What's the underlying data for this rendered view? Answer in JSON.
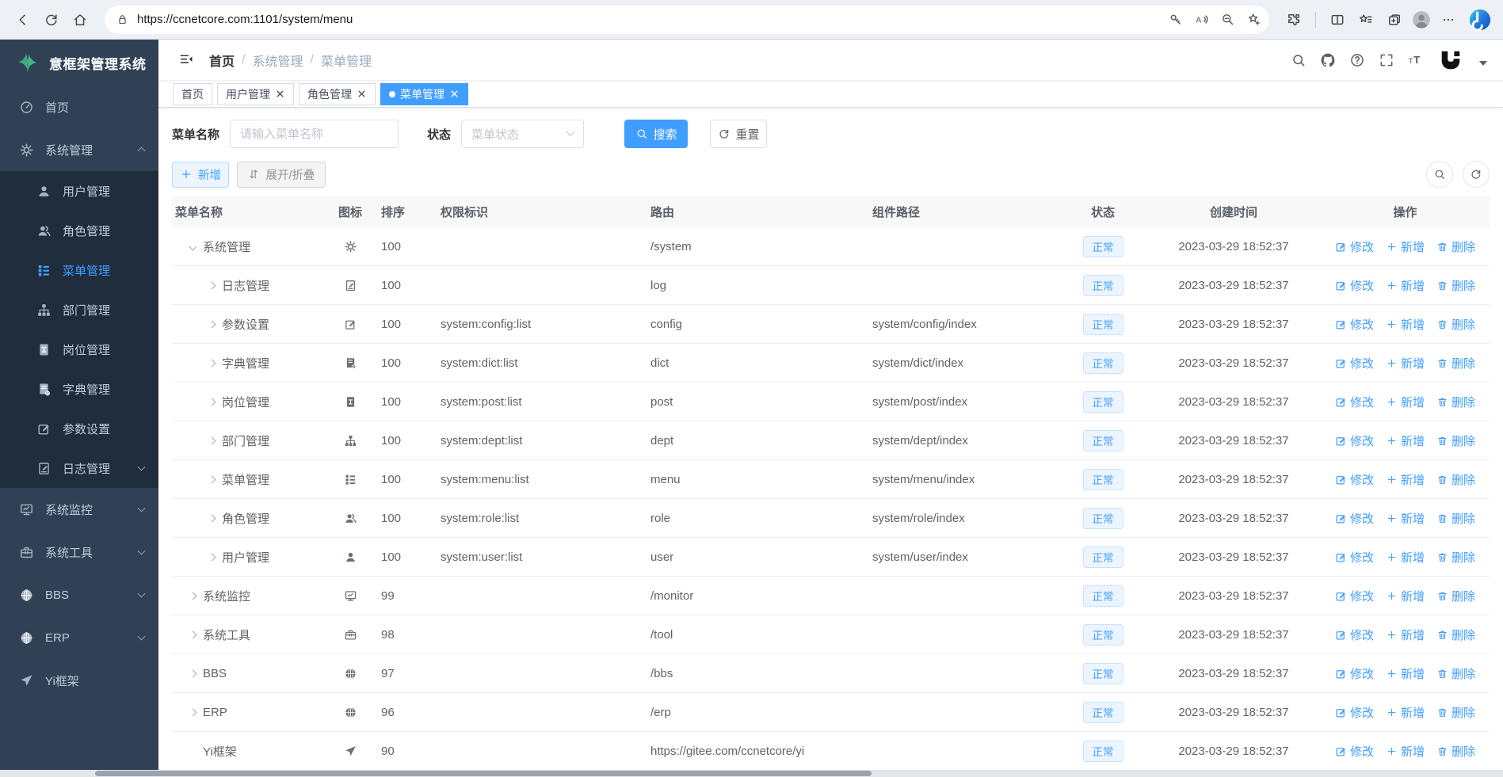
{
  "browser": {
    "url": "https://ccnetcore.com:1101/system/menu"
  },
  "sidebar": {
    "title": "意框架管理系统",
    "items": [
      {
        "label": "首页",
        "icon": "dashboard",
        "type": "top",
        "chevron": "",
        "active": false
      },
      {
        "label": "系统管理",
        "icon": "gear",
        "type": "top",
        "chevron": "up",
        "active": false
      },
      {
        "label": "用户管理",
        "icon": "user",
        "type": "sub",
        "chevron": "",
        "active": false
      },
      {
        "label": "角色管理",
        "icon": "users",
        "type": "sub",
        "chevron": "",
        "active": false
      },
      {
        "label": "菜单管理",
        "icon": "menutree",
        "type": "sub",
        "chevron": "",
        "active": true
      },
      {
        "label": "部门管理",
        "icon": "org",
        "type": "sub",
        "chevron": "",
        "active": false
      },
      {
        "label": "岗位管理",
        "icon": "badge",
        "type": "sub",
        "chevron": "",
        "active": false
      },
      {
        "label": "字典管理",
        "icon": "book",
        "type": "sub",
        "chevron": "",
        "active": false
      },
      {
        "label": "参数设置",
        "icon": "editsquare",
        "type": "sub",
        "chevron": "",
        "active": false
      },
      {
        "label": "日志管理",
        "icon": "logedit",
        "type": "sub",
        "chevron": "down",
        "active": false
      },
      {
        "label": "系统监控",
        "icon": "monitor",
        "type": "top",
        "chevron": "down",
        "active": false
      },
      {
        "label": "系统工具",
        "icon": "toolbox",
        "type": "top",
        "chevron": "down",
        "active": false
      },
      {
        "label": "BBS",
        "icon": "globe",
        "type": "top",
        "chevron": "down",
        "active": false
      },
      {
        "label": "ERP",
        "icon": "globe",
        "type": "top",
        "chevron": "down",
        "active": false
      },
      {
        "label": "Yi框架",
        "icon": "plane",
        "type": "top",
        "chevron": "",
        "active": false
      }
    ]
  },
  "navbar": {
    "separator": "/",
    "breadcrumb": [
      {
        "label": "首页",
        "muted": false
      },
      {
        "label": "系统管理",
        "muted": true
      },
      {
        "label": "菜单管理",
        "muted": true
      }
    ]
  },
  "tabs": [
    {
      "label": "首页",
      "active": false,
      "closable": false
    },
    {
      "label": "用户管理",
      "active": false,
      "closable": true
    },
    {
      "label": "角色管理",
      "active": false,
      "closable": true
    },
    {
      "label": "菜单管理",
      "active": true,
      "closable": true
    }
  ],
  "filters": {
    "name_label": "菜单名称",
    "name_placeholder": "请输入菜单名称",
    "status_label": "状态",
    "status_placeholder": "菜单状态",
    "search_label": "搜索",
    "reset_label": "重置"
  },
  "toolbar": {
    "add_label": "新增",
    "expand_label": "展开/折叠"
  },
  "table": {
    "columns": [
      "菜单名称",
      "图标",
      "排序",
      "权限标识",
      "路由",
      "组件路径",
      "状态",
      "创建时间",
      "操作"
    ],
    "actions": {
      "edit": "修改",
      "add": "新增",
      "delete": "删除"
    },
    "rows": [
      {
        "name": "系统管理",
        "level": 0,
        "arrow": "down",
        "icon": "gear",
        "sort": "100",
        "perm": "",
        "route": "/system",
        "component": "",
        "status": "正常",
        "created": "2023-03-29 18:52:37"
      },
      {
        "name": "日志管理",
        "level": 1,
        "arrow": "right",
        "icon": "logedit",
        "sort": "100",
        "perm": "",
        "route": "log",
        "component": "",
        "status": "正常",
        "created": "2023-03-29 18:52:37"
      },
      {
        "name": "参数设置",
        "level": 1,
        "arrow": "right",
        "icon": "editsquare",
        "sort": "100",
        "perm": "system:config:list",
        "route": "config",
        "component": "system/config/index",
        "status": "正常",
        "created": "2023-03-29 18:52:37"
      },
      {
        "name": "字典管理",
        "level": 1,
        "arrow": "right",
        "icon": "book",
        "sort": "100",
        "perm": "system:dict:list",
        "route": "dict",
        "component": "system/dict/index",
        "status": "正常",
        "created": "2023-03-29 18:52:37"
      },
      {
        "name": "岗位管理",
        "level": 1,
        "arrow": "right",
        "icon": "badge",
        "sort": "100",
        "perm": "system:post:list",
        "route": "post",
        "component": "system/post/index",
        "status": "正常",
        "created": "2023-03-29 18:52:37"
      },
      {
        "name": "部门管理",
        "level": 1,
        "arrow": "right",
        "icon": "org",
        "sort": "100",
        "perm": "system:dept:list",
        "route": "dept",
        "component": "system/dept/index",
        "status": "正常",
        "created": "2023-03-29 18:52:37"
      },
      {
        "name": "菜单管理",
        "level": 1,
        "arrow": "right",
        "icon": "menutree",
        "sort": "100",
        "perm": "system:menu:list",
        "route": "menu",
        "component": "system/menu/index",
        "status": "正常",
        "created": "2023-03-29 18:52:37"
      },
      {
        "name": "角色管理",
        "level": 1,
        "arrow": "right",
        "icon": "users",
        "sort": "100",
        "perm": "system:role:list",
        "route": "role",
        "component": "system/role/index",
        "status": "正常",
        "created": "2023-03-29 18:52:37"
      },
      {
        "name": "用户管理",
        "level": 1,
        "arrow": "right",
        "icon": "user",
        "sort": "100",
        "perm": "system:user:list",
        "route": "user",
        "component": "system/user/index",
        "status": "正常",
        "created": "2023-03-29 18:52:37"
      },
      {
        "name": "系统监控",
        "level": 0,
        "arrow": "right",
        "icon": "monitor",
        "sort": "99",
        "perm": "",
        "route": "/monitor",
        "component": "",
        "status": "正常",
        "created": "2023-03-29 18:52:37"
      },
      {
        "name": "系统工具",
        "level": 0,
        "arrow": "right",
        "icon": "toolbox",
        "sort": "98",
        "perm": "",
        "route": "/tool",
        "component": "",
        "status": "正常",
        "created": "2023-03-29 18:52:37"
      },
      {
        "name": "BBS",
        "level": 0,
        "arrow": "right",
        "icon": "globe",
        "sort": "97",
        "perm": "",
        "route": "/bbs",
        "component": "",
        "status": "正常",
        "created": "2023-03-29 18:52:37"
      },
      {
        "name": "ERP",
        "level": 0,
        "arrow": "right",
        "icon": "globe",
        "sort": "96",
        "perm": "",
        "route": "/erp",
        "component": "",
        "status": "正常",
        "created": "2023-03-29 18:52:37"
      },
      {
        "name": "Yi框架",
        "level": 0,
        "arrow": "none",
        "icon": "plane",
        "sort": "90",
        "perm": "",
        "route": "https://gitee.com/ccnetcore/yi",
        "component": "",
        "status": "正常",
        "created": "2023-03-29 18:52:37"
      }
    ]
  },
  "colors": {
    "accent": "#409eff",
    "sidebar_bg": "#304156",
    "submenu_bg": "#1f2d3d",
    "badge_bg": "#ecf5ff",
    "badge_text": "#409eff"
  }
}
